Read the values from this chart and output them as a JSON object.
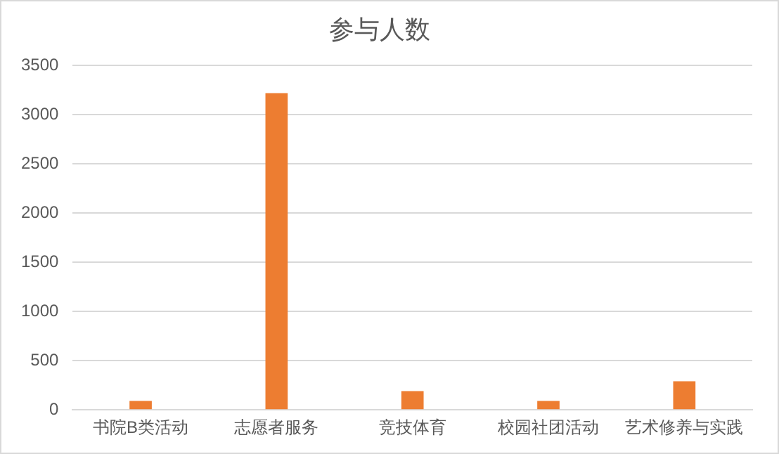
{
  "chart_data": {
    "type": "bar",
    "title": "参与人数",
    "categories": [
      "书院B类活动",
      "志愿者服务",
      "竞技体育",
      "校园社团活动",
      "艺术修养与实践"
    ],
    "values": [
      90,
      3220,
      190,
      90,
      290
    ],
    "color": "#ed7d31",
    "ylim": [
      0,
      3500
    ],
    "yticks": [
      0,
      500,
      1000,
      1500,
      2000,
      2500,
      3000,
      3500
    ],
    "grid": "y",
    "legend": false
  }
}
